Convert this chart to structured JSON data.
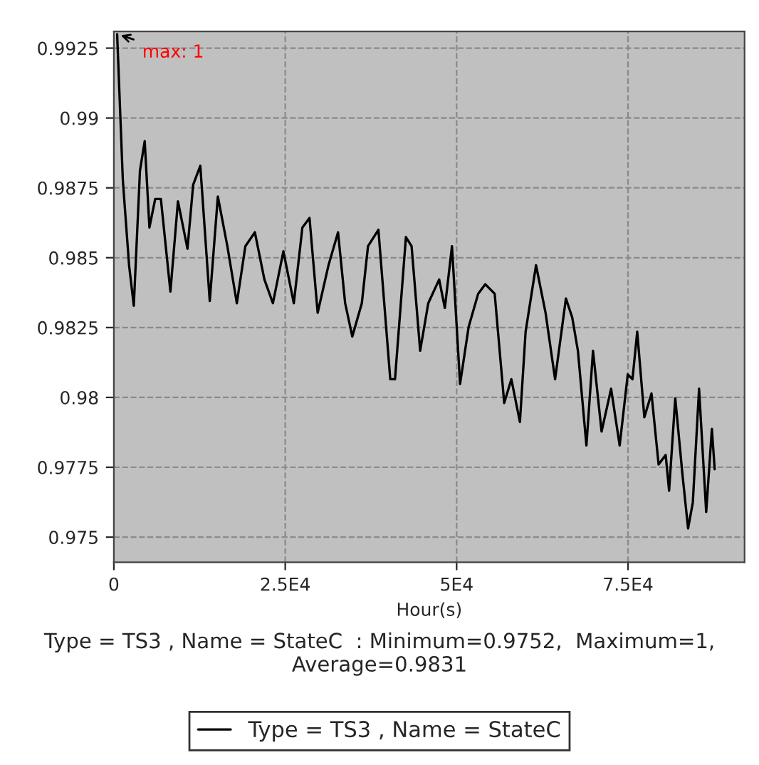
{
  "chart_data": {
    "type": "line",
    "xlabel": "Hour(s)",
    "annotations": [
      "max: 1",
      "Type = TS3 , Name = StateC  : Minimum=0.9752,  Maximum=1, Average=0.9831"
    ],
    "xlim": [
      0,
      92000
    ],
    "ylim": [
      0.9741,
      0.9931
    ],
    "xticks": [
      0,
      {
        "value": 25000,
        "label": "2.5E4"
      },
      {
        "value": 50000,
        "label": "5E4"
      },
      {
        "value": 75000,
        "label": "7.5E4"
      }
    ],
    "yticks": [
      0.975,
      0.9775,
      0.98,
      0.9825,
      0.985,
      0.9875,
      0.99,
      0.9925
    ],
    "grid": true,
    "legend": "bottom",
    "marker": "none",
    "line_style": "solid",
    "series": [
      {
        "name": "Type = TS3 , Name = StateC",
        "color": "#000000",
        "x": [
          480,
          1310,
          2220,
          2910,
          3810,
          4500,
          5190,
          6030,
          6860,
          8250,
          9350,
          10740,
          11570,
          12610,
          13990,
          15170,
          16560,
          17940,
          19180,
          20570,
          21960,
          23200,
          24730,
          26250,
          27500,
          28540,
          29730,
          31310,
          32700,
          33740,
          34780,
          36170,
          37070,
          38590,
          40320,
          41010,
          42600,
          43430,
          44680,
          45860,
          47450,
          48280,
          49320,
          50500,
          51750,
          53140,
          54180,
          55550,
          56940,
          57980,
          59230,
          60060,
          61580,
          62970,
          64360,
          65940,
          66860,
          67690,
          68930,
          69890,
          71140,
          72530,
          73780,
          74960,
          75650,
          76340,
          77380,
          78420,
          79460,
          80490,
          80990,
          81890,
          82930,
          83760,
          84450,
          85360,
          86400,
          87230,
          87640
        ],
        "values": [
          0.993,
          0.98778,
          0.98473,
          0.98328,
          0.98812,
          0.98917,
          0.98608,
          0.9871,
          0.9871,
          0.98379,
          0.98702,
          0.98532,
          0.98761,
          0.98829,
          0.98345,
          0.98719,
          0.98541,
          0.98337,
          0.98541,
          0.98591,
          0.98422,
          0.98337,
          0.98523,
          0.98337,
          0.98608,
          0.98642,
          0.98303,
          0.98473,
          0.98591,
          0.98337,
          0.98218,
          0.98337,
          0.98541,
          0.986,
          0.98065,
          0.98065,
          0.98574,
          0.98541,
          0.98167,
          0.98337,
          0.98422,
          0.9832,
          0.98541,
          0.98048,
          0.98252,
          0.98371,
          0.98405,
          0.98371,
          0.9798,
          0.98065,
          0.97912,
          0.98235,
          0.98473,
          0.98303,
          0.98065,
          0.98354,
          0.98286,
          0.98167,
          0.97828,
          0.98167,
          0.97878,
          0.98031,
          0.97828,
          0.98082,
          0.98065,
          0.98235,
          0.97929,
          0.98014,
          0.9776,
          0.97794,
          0.97666,
          0.97997,
          0.97726,
          0.97531,
          0.97624,
          0.98031,
          0.9759,
          0.97887,
          0.97743
        ]
      }
    ]
  }
}
